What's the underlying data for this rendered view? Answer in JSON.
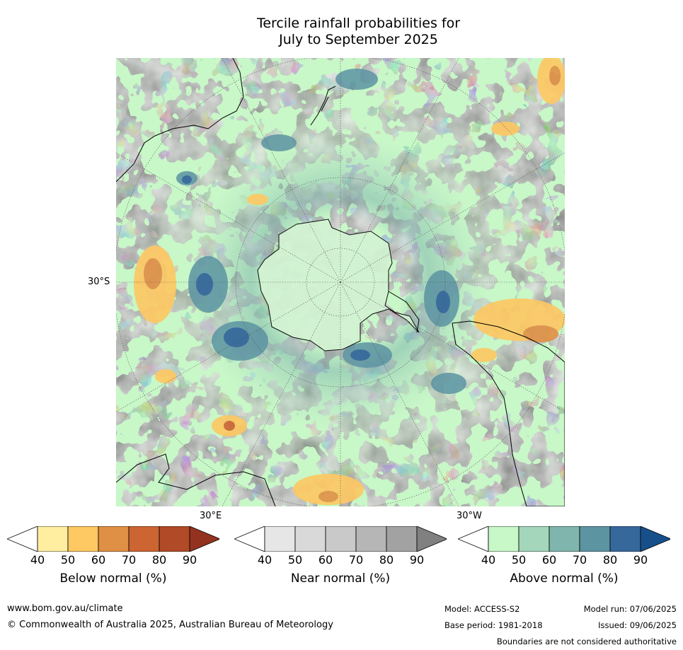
{
  "title": {
    "line1": "Tercile rainfall probabilities for",
    "line2": "July to September 2025"
  },
  "map": {
    "projection": "south polar stereographic",
    "labels": {
      "lat": "30°S",
      "lon_east": "30°E",
      "lon_west": "30°W"
    }
  },
  "legends": [
    {
      "title": "Below normal (%)",
      "ticks": [
        "40",
        "50",
        "60",
        "70",
        "80",
        "90"
      ],
      "colors": [
        "#ffffff",
        "#ffeda0",
        "#fec862",
        "#e09044",
        "#cc6531",
        "#b14a27",
        "#943220"
      ]
    },
    {
      "title": "Near normal (%)",
      "ticks": [
        "40",
        "50",
        "60",
        "70",
        "80",
        "90"
      ],
      "colors": [
        "#ffffff",
        "#e6e6e6",
        "#d9d9d9",
        "#c9c9c9",
        "#b6b6b6",
        "#a2a2a2",
        "#808080"
      ]
    },
    {
      "title": "Above normal (%)",
      "ticks": [
        "40",
        "50",
        "60",
        "70",
        "80",
        "90"
      ],
      "colors": [
        "#ffffff",
        "#c8f7c8",
        "#a3d6ba",
        "#7fb5ac",
        "#5c94a2",
        "#36689c",
        "#174f8b"
      ]
    }
  ],
  "footer": {
    "website": "www.bom.gov.au/climate",
    "copyright": "© Commonwealth of Australia 2025, Australian Bureau of Meteorology",
    "model": "Model: ACCESS-S2",
    "model_run": "Model run: 07/06/2025",
    "base_period": "Base period: 1981-2018",
    "issued": "Issued: 09/06/2025",
    "disclaimer": "Boundaries are not considered authoritative"
  }
}
